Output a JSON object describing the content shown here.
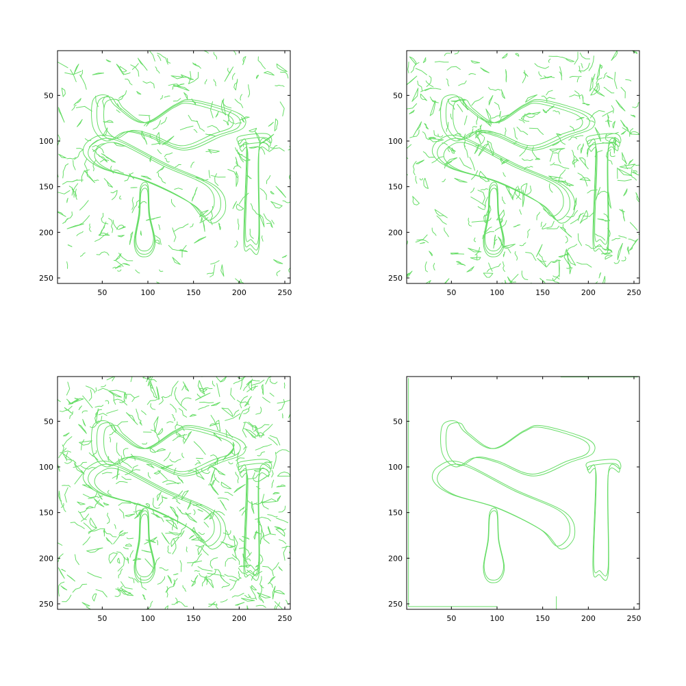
{
  "chart_data": [
    {
      "type": "scatter",
      "subtitle": "",
      "edge_color": "#66dd66",
      "xlim": [
        1,
        256
      ],
      "ylim": [
        256,
        1
      ],
      "y_reversed": true,
      "xticks": [
        50,
        100,
        150,
        200,
        250
      ],
      "yticks": [
        50,
        100,
        150,
        200,
        250
      ],
      "density": 1.0,
      "objects": [
        {
          "name": "wrench",
          "points": [
            [
              40,
              55
            ],
            [
              55,
              50
            ],
            [
              65,
              62
            ],
            [
              95,
              80
            ],
            [
              130,
              60
            ],
            [
              150,
              55
            ],
            [
              200,
              70
            ],
            [
              205,
              85
            ],
            [
              180,
              95
            ],
            [
              140,
              110
            ],
            [
              100,
              95
            ],
            [
              75,
              90
            ],
            [
              55,
              100
            ],
            [
              40,
              85
            ]
          ]
        },
        {
          "name": "pliers",
          "points": [
            [
              35,
              100
            ],
            [
              60,
              95
            ],
            [
              120,
              125
            ],
            [
              175,
              150
            ],
            [
              185,
              175
            ],
            [
              170,
              190
            ],
            [
              150,
              170
            ],
            [
              100,
              145
            ],
            [
              50,
              130
            ],
            [
              30,
              115
            ]
          ]
        },
        {
          "name": "hammer",
          "points": [
            [
              200,
              95
            ],
            [
              230,
              92
            ],
            [
              235,
              102
            ],
            [
              222,
              106
            ],
            [
              222,
              215
            ],
            [
              212,
              218
            ],
            [
              205,
              210
            ],
            [
              208,
              106
            ],
            [
              200,
              103
            ]
          ]
        },
        {
          "name": "screwdriver",
          "points": [
            [
              92,
              150
            ],
            [
              100,
              148
            ],
            [
              102,
              180
            ],
            [
              108,
              210
            ],
            [
              102,
              225
            ],
            [
              90,
              225
            ],
            [
              85,
              210
            ],
            [
              90,
              180
            ]
          ]
        }
      ]
    },
    {
      "type": "scatter",
      "subtitle": "",
      "edge_color": "#66dd66",
      "xlim": [
        1,
        256
      ],
      "ylim": [
        256,
        1
      ],
      "y_reversed": true,
      "xticks": [
        50,
        100,
        150,
        200,
        250
      ],
      "yticks": [
        50,
        100,
        150,
        200,
        250
      ],
      "density": 1.4,
      "objects": [
        {
          "name": "wrench",
          "points": [
            [
              40,
              55
            ],
            [
              55,
              50
            ],
            [
              65,
              62
            ],
            [
              95,
              80
            ],
            [
              130,
              60
            ],
            [
              150,
              55
            ],
            [
              200,
              70
            ],
            [
              205,
              85
            ],
            [
              180,
              95
            ],
            [
              140,
              110
            ],
            [
              100,
              95
            ],
            [
              75,
              90
            ],
            [
              55,
              100
            ],
            [
              40,
              85
            ]
          ]
        },
        {
          "name": "pliers",
          "points": [
            [
              35,
              100
            ],
            [
              60,
              95
            ],
            [
              120,
              125
            ],
            [
              175,
              150
            ],
            [
              185,
              175
            ],
            [
              170,
              190
            ],
            [
              150,
              170
            ],
            [
              100,
              145
            ],
            [
              50,
              130
            ],
            [
              30,
              115
            ]
          ]
        },
        {
          "name": "hammer",
          "points": [
            [
              200,
              95
            ],
            [
              230,
              92
            ],
            [
              235,
              102
            ],
            [
              222,
              106
            ],
            [
              222,
              215
            ],
            [
              212,
              218
            ],
            [
              205,
              210
            ],
            [
              208,
              106
            ],
            [
              200,
              103
            ]
          ]
        },
        {
          "name": "screwdriver",
          "points": [
            [
              92,
              150
            ],
            [
              100,
              148
            ],
            [
              102,
              180
            ],
            [
              108,
              210
            ],
            [
              102,
              225
            ],
            [
              90,
              225
            ],
            [
              85,
              210
            ],
            [
              90,
              180
            ]
          ]
        }
      ]
    },
    {
      "type": "scatter",
      "subtitle": "",
      "edge_color": "#66dd66",
      "xlim": [
        1,
        256
      ],
      "ylim": [
        256,
        1
      ],
      "y_reversed": true,
      "xticks": [
        50,
        100,
        150,
        200,
        250
      ],
      "yticks": [
        50,
        100,
        150,
        200,
        250
      ],
      "density": 1.8,
      "objects": [
        {
          "name": "wrench",
          "points": [
            [
              40,
              55
            ],
            [
              55,
              50
            ],
            [
              65,
              62
            ],
            [
              95,
              80
            ],
            [
              130,
              60
            ],
            [
              150,
              55
            ],
            [
              200,
              70
            ],
            [
              205,
              85
            ],
            [
              180,
              95
            ],
            [
              140,
              110
            ],
            [
              100,
              95
            ],
            [
              75,
              90
            ],
            [
              55,
              100
            ],
            [
              40,
              85
            ]
          ]
        },
        {
          "name": "pliers",
          "points": [
            [
              35,
              100
            ],
            [
              60,
              95
            ],
            [
              120,
              125
            ],
            [
              175,
              150
            ],
            [
              185,
              175
            ],
            [
              170,
              190
            ],
            [
              150,
              170
            ],
            [
              100,
              145
            ],
            [
              50,
              130
            ],
            [
              30,
              115
            ]
          ]
        },
        {
          "name": "hammer",
          "points": [
            [
              200,
              95
            ],
            [
              230,
              92
            ],
            [
              235,
              102
            ],
            [
              222,
              106
            ],
            [
              222,
              215
            ],
            [
              212,
              218
            ],
            [
              205,
              210
            ],
            [
              208,
              106
            ],
            [
              200,
              103
            ]
          ]
        },
        {
          "name": "screwdriver",
          "points": [
            [
              92,
              150
            ],
            [
              100,
              148
            ],
            [
              102,
              180
            ],
            [
              108,
              210
            ],
            [
              102,
              225
            ],
            [
              90,
              225
            ],
            [
              85,
              210
            ],
            [
              90,
              180
            ]
          ]
        }
      ]
    },
    {
      "type": "scatter",
      "subtitle": "",
      "edge_color": "#66dd66",
      "xlim": [
        1,
        256
      ],
      "ylim": [
        256,
        1
      ],
      "y_reversed": true,
      "xticks": [
        50,
        100,
        150,
        200,
        250
      ],
      "yticks": [
        50,
        100,
        150,
        200,
        250
      ],
      "density": 0,
      "objects": [
        {
          "name": "wrench",
          "points": [
            [
              40,
              55
            ],
            [
              55,
              50
            ],
            [
              65,
              62
            ],
            [
              95,
              80
            ],
            [
              130,
              60
            ],
            [
              150,
              55
            ],
            [
              200,
              70
            ],
            [
              205,
              85
            ],
            [
              180,
              95
            ],
            [
              140,
              110
            ],
            [
              100,
              95
            ],
            [
              75,
              90
            ],
            [
              55,
              100
            ],
            [
              40,
              85
            ]
          ]
        },
        {
          "name": "pliers",
          "points": [
            [
              35,
              100
            ],
            [
              60,
              95
            ],
            [
              120,
              125
            ],
            [
              175,
              150
            ],
            [
              185,
              175
            ],
            [
              170,
              190
            ],
            [
              150,
              170
            ],
            [
              100,
              145
            ],
            [
              50,
              130
            ],
            [
              30,
              115
            ]
          ]
        },
        {
          "name": "hammer",
          "points": [
            [
              200,
              95
            ],
            [
              230,
              92
            ],
            [
              235,
              102
            ],
            [
              222,
              106
            ],
            [
              222,
              215
            ],
            [
              212,
              218
            ],
            [
              205,
              210
            ],
            [
              208,
              106
            ],
            [
              200,
              103
            ]
          ]
        },
        {
          "name": "screwdriver",
          "points": [
            [
              92,
              150
            ],
            [
              100,
              148
            ],
            [
              102,
              180
            ],
            [
              108,
              210
            ],
            [
              102,
              225
            ],
            [
              90,
              225
            ],
            [
              85,
              210
            ],
            [
              90,
              180
            ]
          ]
        }
      ]
    }
  ]
}
